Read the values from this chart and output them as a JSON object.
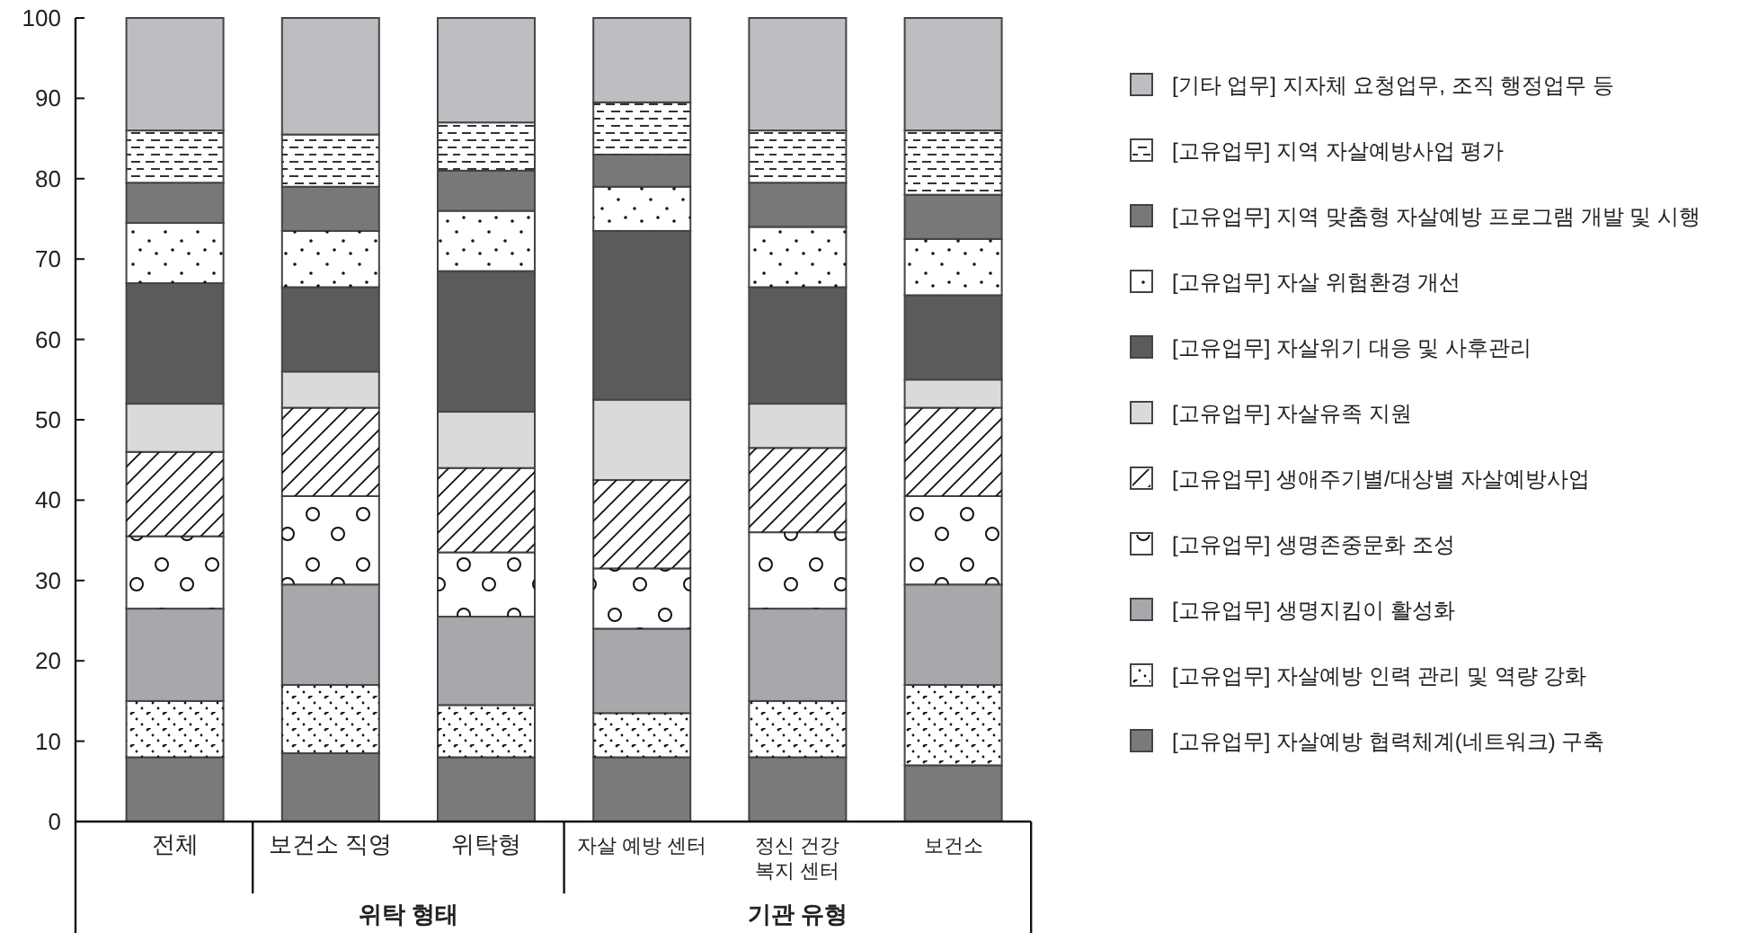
{
  "chart_data": {
    "type": "bar",
    "stacked": true,
    "categories": [
      "전체",
      "보건소 직영",
      "위탁형",
      "자살 예방 센터",
      "정신 건강\n복지 센터",
      "보건소"
    ],
    "annotations": [
      "위탁 형태",
      "기관 유형"
    ],
    "ylim": [
      0,
      100
    ],
    "yticks": [
      0,
      10,
      20,
      30,
      40,
      50,
      60,
      70,
      80,
      90,
      100
    ],
    "grid": false,
    "legend": "right",
    "series": [
      {
        "name": "[고유업무] 자살예방 협력체계(네트워크) 구축",
        "color": "#7a7a7b",
        "values": [
          8,
          8.5,
          8,
          8,
          8,
          7
        ]
      },
      {
        "name": "[고유업무] 자살예방 인력 관리 및 역량 강화",
        "color": "#ffffff",
        "values": [
          7,
          8.5,
          6.5,
          5.5,
          7,
          10
        ]
      },
      {
        "name": "[고유업무] 생명지킴이 활성화",
        "color": "#a7a8ab",
        "values": [
          11.5,
          12.5,
          11,
          10.5,
          11.5,
          12.5
        ]
      },
      {
        "name": "[고유업무] 생명존중문화 조성",
        "color": "#ffffff",
        "values": [
          9,
          11,
          8,
          7.5,
          9.5,
          11
        ]
      },
      {
        "name": "[고유업무] 생애주기별/대상별 자살예방사업",
        "color": "#ffffff",
        "values": [
          10.5,
          11,
          10.5,
          11,
          10.5,
          11
        ]
      },
      {
        "name": "[고유업무] 자살유족 지원",
        "color": "#d9dadc",
        "values": [
          6,
          4.5,
          7,
          10,
          5.5,
          3.5
        ]
      },
      {
        "name": "[고유업무] 자살위기 대응 및 사후관리",
        "color": "#5b5b5d",
        "values": [
          15,
          10.5,
          17.5,
          21,
          14.5,
          10.5
        ]
      },
      {
        "name": "[고유업무] 자살 위험환경 개선",
        "color": "#ffffff",
        "values": [
          7.5,
          7,
          7.5,
          5.5,
          7.5,
          7
        ]
      },
      {
        "name": "[고유업무] 지역 맞춤형 자살예방 프로그램 개발 및 시행",
        "color": "#78787a",
        "values": [
          5,
          5.5,
          5,
          4,
          5.5,
          5.5
        ]
      },
      {
        "name": "[고유업무] 지역 자살예방사업 평가",
        "color": "#ffffff",
        "values": [
          6.5,
          6.5,
          6,
          6.5,
          6.5,
          8
        ]
      },
      {
        "name": "[기타 업무] 지자체 요청업무, 조직 행정업무 등",
        "color": "#bdbec1",
        "values": [
          14,
          14.5,
          13,
          10.5,
          14,
          14
        ]
      }
    ]
  }
}
